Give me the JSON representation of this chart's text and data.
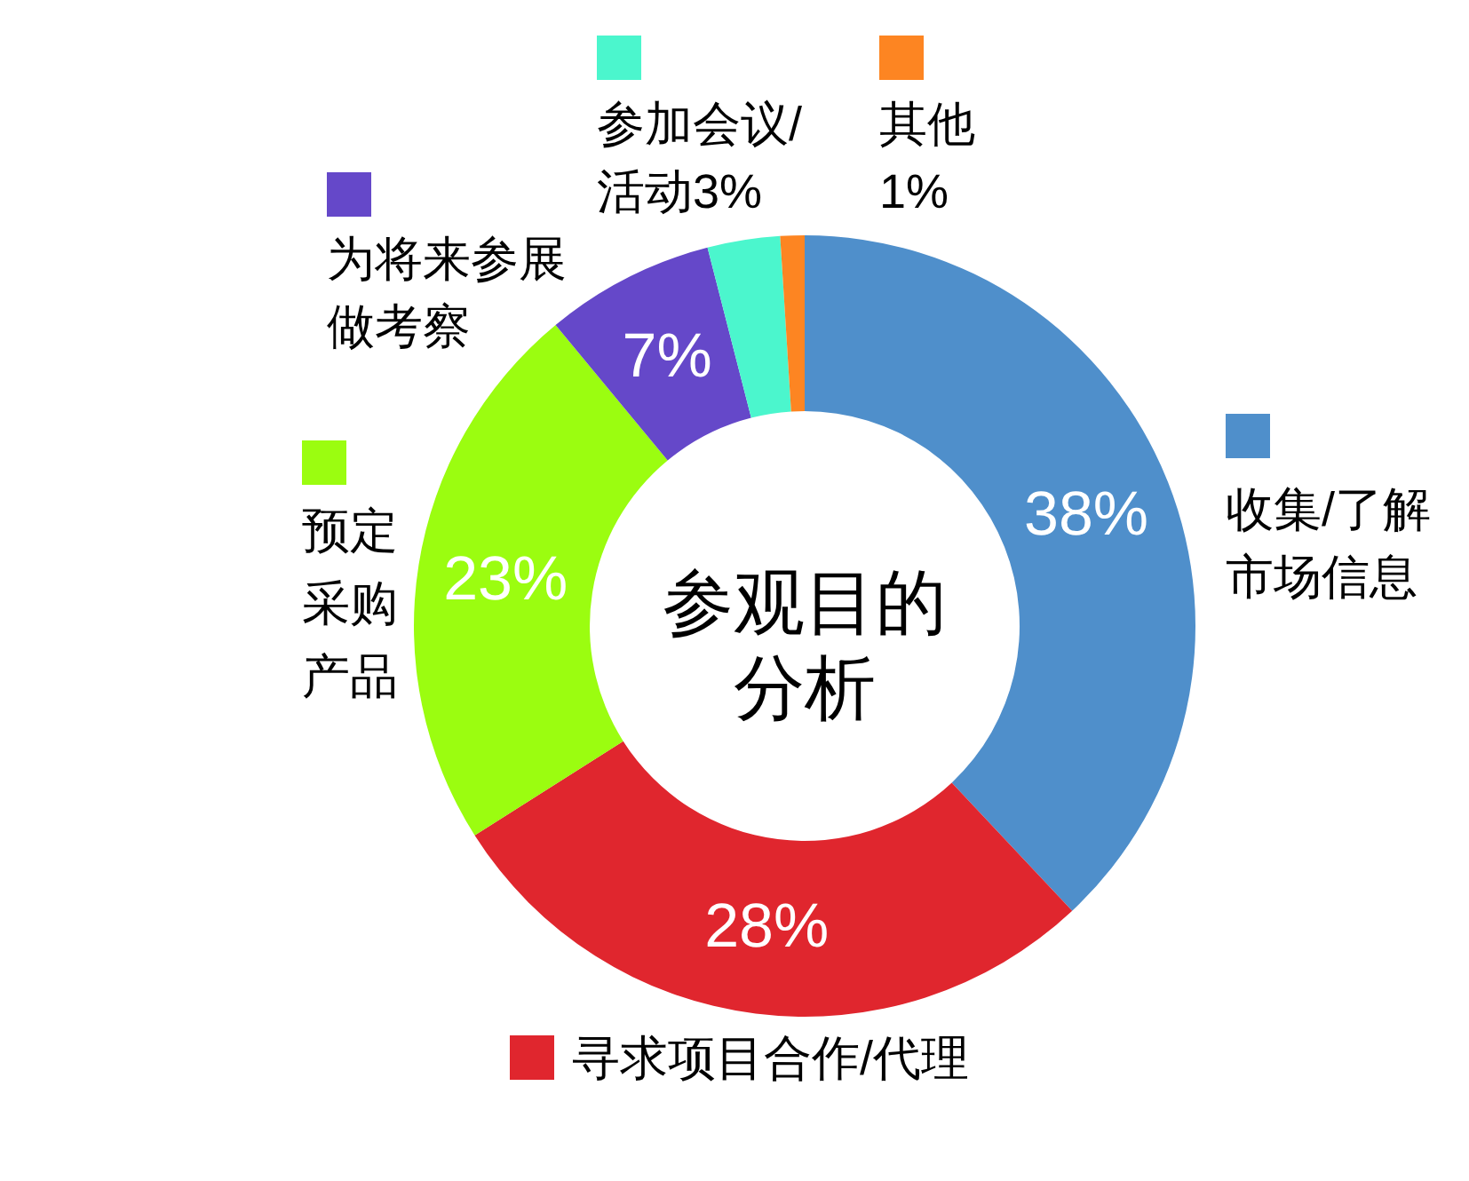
{
  "chart_data": {
    "type": "donut",
    "title": "参观目的分析",
    "categories": [
      "收集/了解市场信息",
      "寻求项目合作/代理",
      "预定采购产品",
      "为将来参展做考察",
      "参加会议/活动3%",
      "其他"
    ],
    "values": [
      38,
      28,
      23,
      7,
      3,
      1
    ],
    "value_labels": [
      "38%",
      "28%",
      "23%",
      "7%",
      null,
      "1%"
    ],
    "colors": [
      "#4f8fcb",
      "#e0262e",
      "#9bfd10",
      "#6548c9",
      "#4bf6cd",
      "#fd8522"
    ],
    "legend": "top"
  }
}
